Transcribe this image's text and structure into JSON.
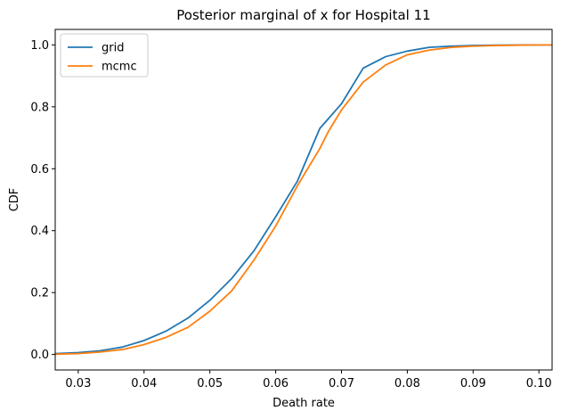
{
  "chart_data": {
    "type": "line",
    "title": "Posterior marginal of x for Hospital 11",
    "xlabel": "Death rate",
    "ylabel": "CDF",
    "xlim": [
      0.0265,
      0.102
    ],
    "ylim": [
      -0.05,
      1.05
    ],
    "xticks": [
      0.03,
      0.04,
      0.05,
      0.06,
      0.07,
      0.08,
      0.09,
      0.1
    ],
    "xtick_labels": [
      "0.03",
      "0.04",
      "0.05",
      "0.06",
      "0.07",
      "0.08",
      "0.09",
      "0.10"
    ],
    "yticks": [
      0.0,
      0.2,
      0.4,
      0.6,
      0.8,
      1.0
    ],
    "ytick_labels": [
      "0.0",
      "0.2",
      "0.4",
      "0.6",
      "0.8",
      "1.0"
    ],
    "grid": false,
    "legend_position": "upper-left",
    "series": [
      {
        "name": "grid",
        "color": "#1f77b4",
        "x": [
          0.0265,
          0.03,
          0.0333,
          0.0367,
          0.04,
          0.0433,
          0.0467,
          0.05,
          0.0533,
          0.0567,
          0.06,
          0.0633,
          0.0667,
          0.07,
          0.0733,
          0.0767,
          0.08,
          0.0833,
          0.0867,
          0.09,
          0.0933,
          0.0967,
          0.1,
          0.102
        ],
        "y": [
          0.003,
          0.006,
          0.012,
          0.024,
          0.045,
          0.075,
          0.118,
          0.175,
          0.245,
          0.335,
          0.445,
          0.56,
          0.73,
          0.81,
          0.925,
          0.962,
          0.98,
          0.992,
          0.996,
          0.998,
          0.999,
          0.9995,
          1.0,
          1.0
        ]
      },
      {
        "name": "mcmc",
        "color": "#ff7f0e",
        "x": [
          0.0265,
          0.03,
          0.0333,
          0.0367,
          0.038,
          0.04,
          0.0433,
          0.0467,
          0.05,
          0.0533,
          0.0567,
          0.06,
          0.0633,
          0.0667,
          0.068,
          0.07,
          0.0733,
          0.0767,
          0.08,
          0.0833,
          0.0867,
          0.09,
          0.0933,
          0.0967,
          0.1,
          0.102
        ],
        "y": [
          0.001,
          0.003,
          0.008,
          0.016,
          0.022,
          0.032,
          0.055,
          0.088,
          0.14,
          0.205,
          0.305,
          0.415,
          0.545,
          0.665,
          0.72,
          0.79,
          0.88,
          0.935,
          0.968,
          0.983,
          0.992,
          0.996,
          0.998,
          0.999,
          1.0,
          1.0
        ]
      }
    ]
  }
}
